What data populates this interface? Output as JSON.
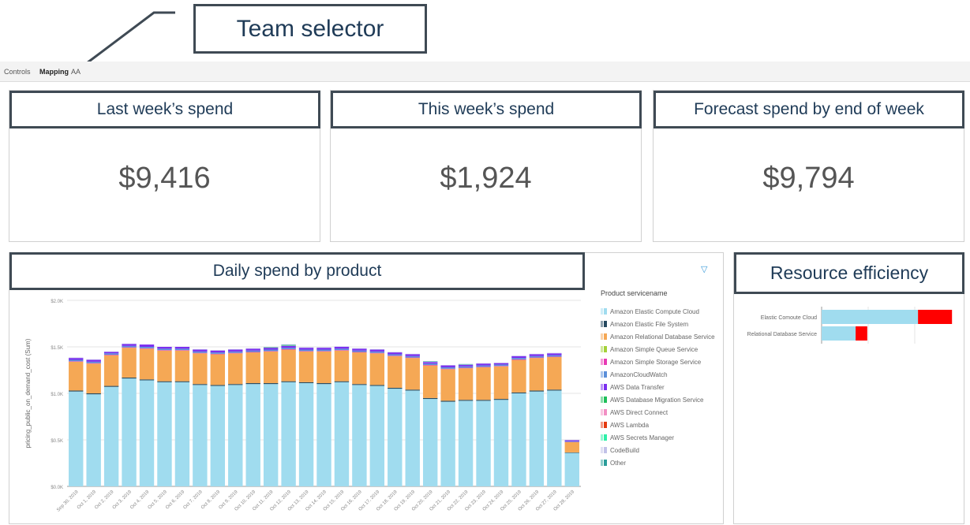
{
  "annotations": {
    "team_selector": "Team selector",
    "last_week": "Last week’s spend",
    "this_week": "This week’s spend",
    "forecast": "Forecast spend by end of week",
    "daily_spend": "Daily spend by product",
    "resource_efficiency": "Resource efficiency"
  },
  "toolbar": {
    "tabs": [
      "Controls",
      "Mapping",
      "AA"
    ],
    "active": "Mapping"
  },
  "kpis": {
    "last_week": "$9,416",
    "this_week": "$1,924",
    "forecast": "$9,794"
  },
  "chart_data": [
    {
      "type": "bar",
      "stacked": true,
      "ylabel": "pricing_public_on_demand_cost (Sum)",
      "ylim": [
        0,
        2000
      ],
      "yticks": [
        "$0.0K",
        "$0.5K",
        "$1.0K",
        "$1.5K",
        "$2.0K"
      ],
      "legend_title": "Product servicename",
      "legend_position": "right",
      "grid": true,
      "categories": [
        "Sep 30, 2019",
        "Oct 1, 2019",
        "Oct 2, 2019",
        "Oct 3, 2019",
        "Oct 4, 2019",
        "Oct 5, 2019",
        "Oct 6, 2019",
        "Oct 7, 2019",
        "Oct 8, 2019",
        "Oct 9, 2019",
        "Oct 10, 2019",
        "Oct 11, 2019",
        "Oct 12, 2019",
        "Oct 13, 2019",
        "Oct 14, 2019",
        "Oct 15, 2019",
        "Oct 16, 2019",
        "Oct 17, 2019",
        "Oct 18, 2019",
        "Oct 19, 2019",
        "Oct 20, 2019",
        "Oct 21, 2019",
        "Oct 22, 2019",
        "Oct 23, 2019",
        "Oct 24, 2019",
        "Oct 25, 2019",
        "Oct 26, 2019",
        "Oct 27, 2019",
        "Oct 28, 2019"
      ],
      "series": [
        {
          "name": "Amazon Elastic Compute Cloud",
          "color": "#a0dcef",
          "values": [
            1020,
            990,
            1070,
            1160,
            1140,
            1120,
            1120,
            1090,
            1080,
            1090,
            1100,
            1100,
            1120,
            1110,
            1100,
            1120,
            1090,
            1080,
            1050,
            1030,
            940,
            910,
            920,
            920,
            930,
            1000,
            1020,
            1030,
            360
          ]
        },
        {
          "name": "Amazon Elastic File System",
          "color": "#264a60",
          "values": [
            10,
            10,
            10,
            10,
            10,
            10,
            10,
            10,
            10,
            10,
            10,
            10,
            10,
            10,
            10,
            10,
            10,
            10,
            10,
            10,
            10,
            10,
            10,
            10,
            10,
            10,
            10,
            10,
            5
          ]
        },
        {
          "name": "Amazon Relational Database Service",
          "color": "#f5a855",
          "values": [
            310,
            320,
            330,
            320,
            330,
            330,
            330,
            330,
            330,
            330,
            330,
            340,
            340,
            330,
            340,
            330,
            340,
            340,
            340,
            340,
            350,
            340,
            340,
            350,
            350,
            350,
            350,
            350,
            110
          ]
        },
        {
          "name": "Amazon Simple Queue Service",
          "color": "#a4d13a",
          "values": [
            0,
            0,
            0,
            0,
            0,
            0,
            0,
            0,
            0,
            0,
            0,
            0,
            0,
            0,
            0,
            0,
            0,
            0,
            0,
            0,
            0,
            0,
            0,
            0,
            0,
            0,
            0,
            0,
            0
          ]
        },
        {
          "name": "Amazon Simple Storage Service",
          "color": "#e83ab5",
          "values": [
            5,
            5,
            5,
            5,
            5,
            5,
            5,
            5,
            5,
            5,
            5,
            5,
            5,
            5,
            5,
            5,
            5,
            5,
            5,
            5,
            5,
            5,
            5,
            5,
            5,
            5,
            5,
            5,
            3
          ]
        },
        {
          "name": "AmazonCloudWatch",
          "color": "#5b8fd9",
          "values": [
            15,
            15,
            15,
            15,
            15,
            15,
            15,
            15,
            15,
            15,
            15,
            15,
            15,
            15,
            15,
            15,
            15,
            15,
            15,
            15,
            15,
            15,
            15,
            15,
            15,
            15,
            15,
            15,
            8
          ]
        },
        {
          "name": "AWS Data Transfer",
          "color": "#7b2ff0",
          "values": [
            20,
            20,
            15,
            20,
            25,
            20,
            20,
            20,
            20,
            20,
            20,
            20,
            20,
            20,
            20,
            20,
            20,
            20,
            20,
            20,
            15,
            20,
            15,
            20,
            15,
            20,
            20,
            20,
            10
          ]
        },
        {
          "name": "AWS Database Migration Service",
          "color": "#1fbf5a",
          "values": [
            0,
            0,
            0,
            0,
            0,
            0,
            0,
            0,
            0,
            0,
            0,
            5,
            5,
            0,
            0,
            0,
            0,
            0,
            0,
            0,
            0,
            0,
            0,
            0,
            0,
            0,
            0,
            0,
            0
          ]
        },
        {
          "name": "AWS Direct Connect",
          "color": "#f28fc4",
          "values": [
            0,
            0,
            0,
            0,
            0,
            0,
            0,
            0,
            0,
            0,
            0,
            0,
            0,
            0,
            0,
            0,
            0,
            0,
            0,
            0,
            0,
            0,
            0,
            0,
            0,
            0,
            0,
            0,
            0
          ]
        },
        {
          "name": "AWS Lambda",
          "color": "#e43a0f",
          "values": [
            0,
            0,
            0,
            0,
            0,
            0,
            0,
            0,
            0,
            0,
            0,
            0,
            0,
            0,
            0,
            0,
            0,
            0,
            0,
            0,
            0,
            0,
            0,
            0,
            0,
            0,
            0,
            0,
            0
          ]
        },
        {
          "name": "AWS Secrets Manager",
          "color": "#2ef0a8",
          "values": [
            0,
            0,
            0,
            0,
            0,
            0,
            0,
            0,
            0,
            0,
            0,
            0,
            0,
            0,
            0,
            0,
            0,
            0,
            0,
            0,
            0,
            0,
            0,
            0,
            0,
            0,
            0,
            0,
            0
          ]
        },
        {
          "name": "CodeBuild",
          "color": "#c2c2e8",
          "values": [
            5,
            5,
            5,
            5,
            0,
            0,
            0,
            5,
            5,
            5,
            5,
            5,
            5,
            5,
            5,
            5,
            5,
            5,
            5,
            5,
            5,
            5,
            5,
            5,
            5,
            5,
            5,
            5,
            4
          ]
        },
        {
          "name": "Other",
          "color": "#2a9d9a",
          "values": [
            0,
            0,
            0,
            0,
            0,
            0,
            0,
            0,
            0,
            0,
            0,
            0,
            5,
            0,
            0,
            0,
            0,
            0,
            0,
            0,
            5,
            0,
            5,
            0,
            0,
            0,
            0,
            0,
            0
          ]
        }
      ]
    },
    {
      "type": "bar",
      "orientation": "horizontal",
      "stacked": true,
      "categories": [
        "Elastic Comoute Cloud",
        "Relational Database Service"
      ],
      "xlim": [
        0,
        3
      ],
      "grid": true,
      "series": [
        {
          "color": "#a0dcef",
          "values": [
            2.07,
            0.73
          ]
        },
        {
          "color": "#ff0000",
          "values": [
            0.73,
            0.25
          ]
        }
      ]
    }
  ]
}
